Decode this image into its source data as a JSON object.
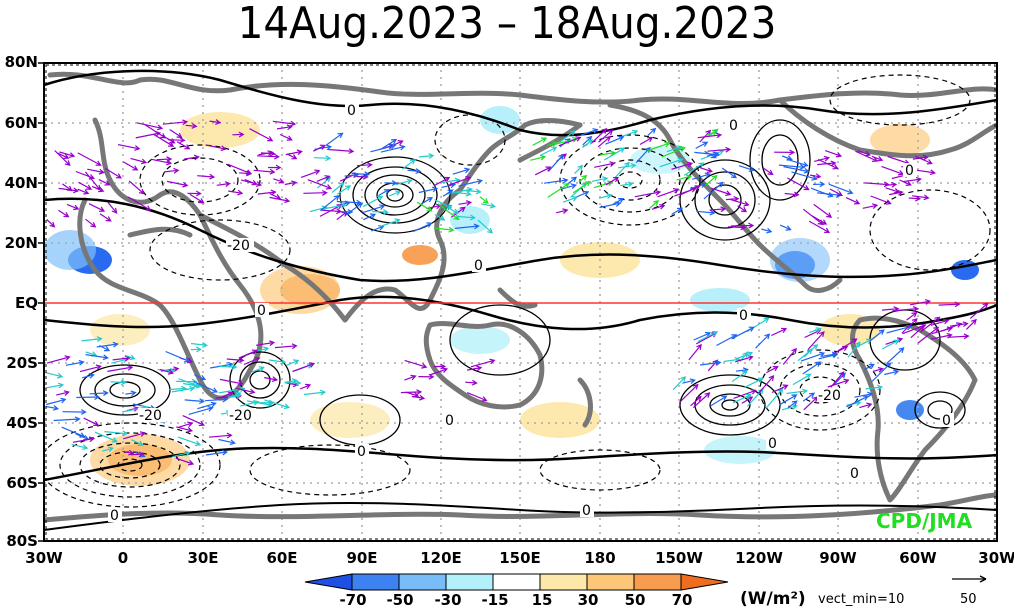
{
  "title": "14Aug.2023 – 18Aug.2023",
  "lat_labels": [
    "80N",
    "60N",
    "40N",
    "20N",
    "EQ",
    "20S",
    "40S",
    "60S",
    "80S"
  ],
  "lon_labels": [
    "30W",
    "0",
    "30E",
    "60E",
    "90E",
    "120E",
    "150E",
    "180",
    "150W",
    "120W",
    "90W",
    "60W",
    "30W"
  ],
  "contour_labels": [
    "0",
    "0",
    "0",
    "-20",
    "0",
    "0",
    "0",
    "-20",
    "-20",
    "0",
    "0",
    "0",
    "0",
    "-20",
    "0",
    "0",
    "0"
  ],
  "credit": "CPD/JMA",
  "colorbar": {
    "ticks": [
      "-70",
      "-50",
      "-30",
      "-15",
      "15",
      "30",
      "50",
      "70"
    ],
    "unit": "(W/m²)",
    "vect_min_label": "vect_min=10",
    "ref_value": "50",
    "colors": [
      "#1e50e6",
      "#3c82f0",
      "#78bcf8",
      "#b4f0fa",
      "#ffffff",
      "#fde8aa",
      "#fcc878",
      "#f89c50",
      "#f06c1e"
    ]
  },
  "colors": {
    "coast": "#777777",
    "contour": "#000000",
    "equator": "#ff3333",
    "vector_low": "#9900cc",
    "vector_mid1": "#1e64f0",
    "vector_mid2": "#22cccc",
    "vector_high": "#22dd22",
    "vector_max": "#ff9900"
  }
}
